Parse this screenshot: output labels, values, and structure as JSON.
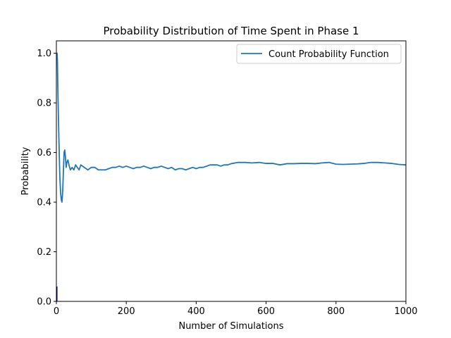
{
  "chart_data": {
    "type": "line",
    "title": "Probability Distribution of Time Spent in Phase 1",
    "xlabel": "Number of Simulations",
    "ylabel": "Probability",
    "xlim": [
      0,
      1000
    ],
    "ylim": [
      0,
      1.05
    ],
    "x_ticks": [
      0,
      200,
      400,
      600,
      800,
      1000
    ],
    "x_tick_labels": [
      "0",
      "200",
      "400",
      "600",
      "800",
      "1000"
    ],
    "y_ticks": [
      0.0,
      0.2,
      0.4,
      0.6,
      0.8,
      1.0
    ],
    "y_tick_labels": [
      "0.0",
      "0.2",
      "0.4",
      "0.6",
      "0.8",
      "1.0"
    ],
    "grid": false,
    "legend_position": "top-right",
    "series": [
      {
        "name": "Count Probability Function",
        "color": "#1f77b4",
        "x": [
          1,
          2,
          3,
          4,
          5,
          6,
          7,
          8,
          9,
          10,
          12,
          14,
          16,
          18,
          20,
          22,
          24,
          26,
          28,
          30,
          33,
          36,
          40,
          45,
          50,
          55,
          60,
          65,
          70,
          80,
          90,
          100,
          110,
          120,
          130,
          140,
          150,
          160,
          170,
          180,
          190,
          200,
          210,
          220,
          230,
          240,
          250,
          260,
          270,
          280,
          290,
          300,
          310,
          320,
          330,
          340,
          350,
          360,
          370,
          380,
          390,
          400,
          410,
          420,
          430,
          440,
          450,
          460,
          470,
          480,
          490,
          500,
          520,
          540,
          560,
          580,
          600,
          620,
          640,
          660,
          680,
          700,
          720,
          740,
          760,
          780,
          800,
          820,
          840,
          860,
          880,
          900,
          920,
          940,
          960,
          980,
          1000
        ],
        "y": [
          1.0,
          1.0,
          0.97,
          0.88,
          0.8,
          0.73,
          0.67,
          0.61,
          0.55,
          0.5,
          0.44,
          0.41,
          0.4,
          0.44,
          0.52,
          0.6,
          0.61,
          0.58,
          0.54,
          0.56,
          0.57,
          0.55,
          0.53,
          0.54,
          0.53,
          0.55,
          0.54,
          0.53,
          0.55,
          0.54,
          0.53,
          0.54,
          0.54,
          0.53,
          0.53,
          0.53,
          0.535,
          0.54,
          0.54,
          0.545,
          0.54,
          0.545,
          0.54,
          0.535,
          0.54,
          0.54,
          0.545,
          0.54,
          0.535,
          0.54,
          0.54,
          0.545,
          0.54,
          0.535,
          0.54,
          0.53,
          0.535,
          0.535,
          0.53,
          0.535,
          0.54,
          0.535,
          0.54,
          0.54,
          0.545,
          0.55,
          0.55,
          0.55,
          0.545,
          0.55,
          0.55,
          0.555,
          0.56,
          0.56,
          0.558,
          0.56,
          0.556,
          0.556,
          0.55,
          0.555,
          0.555,
          0.556,
          0.556,
          0.555,
          0.558,
          0.56,
          0.553,
          0.552,
          0.553,
          0.554,
          0.556,
          0.56,
          0.56,
          0.558,
          0.556,
          0.552,
          0.55
        ]
      }
    ],
    "markers": [
      {
        "x": 1,
        "y_from": 0.0,
        "y_to": 0.06,
        "color": "#00008b"
      }
    ]
  }
}
